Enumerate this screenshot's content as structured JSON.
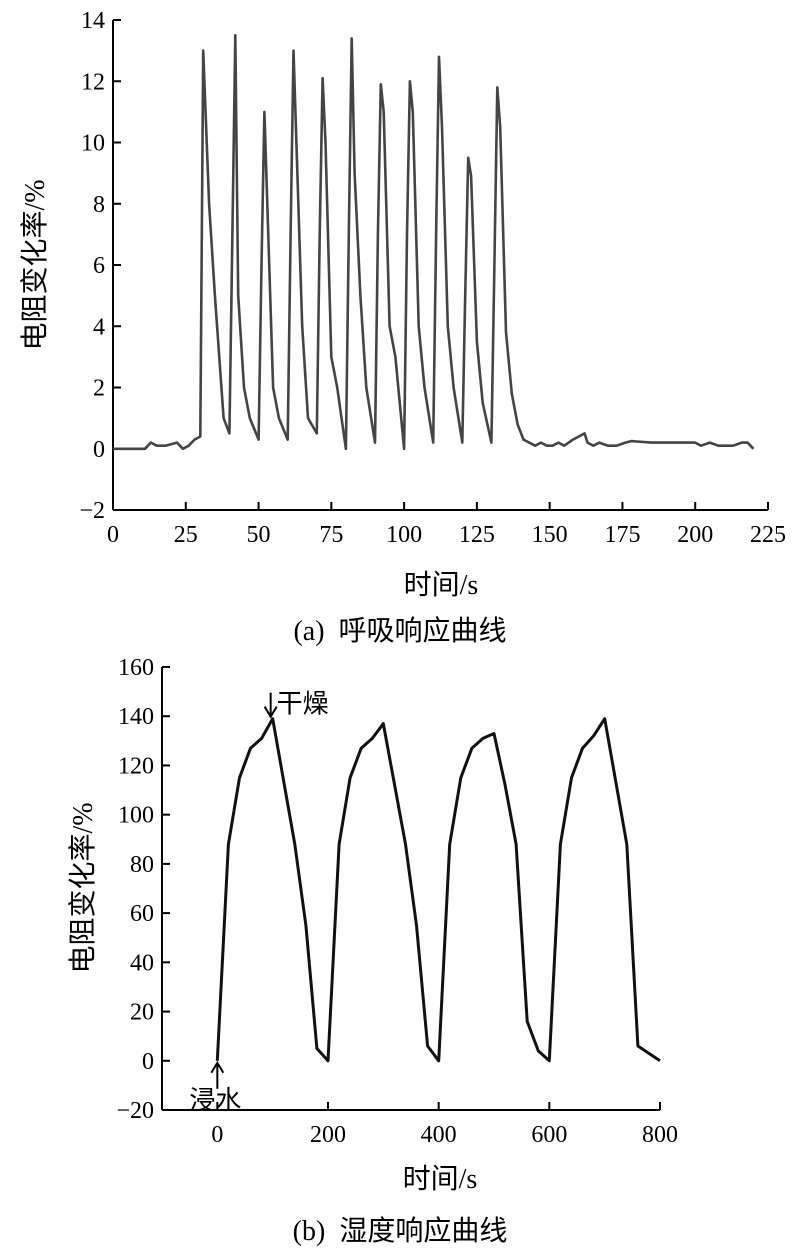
{
  "chart_data": [
    {
      "type": "line",
      "caption": "(a)  呼吸响应曲线",
      "xlabel": "时间/s",
      "ylabel": "电阻变化率/%",
      "xlim": [
        0,
        225
      ],
      "ylim": [
        -2,
        14
      ],
      "xticks": [
        0,
        25,
        50,
        75,
        100,
        125,
        150,
        175,
        200,
        225
      ],
      "yticks": [
        -2,
        0,
        2,
        4,
        6,
        8,
        10,
        12,
        14
      ],
      "ytick_labels": [
        "−2",
        "0",
        "2",
        "4",
        "6",
        "8",
        "10",
        "12",
        "14"
      ],
      "color": "#444444",
      "series": [
        {
          "x": [
            0,
            4,
            8,
            11,
            13,
            15,
            18,
            22,
            24,
            26,
            28,
            30,
            31,
            33,
            35,
            38,
            40,
            41,
            42,
            43,
            45,
            47,
            50,
            51,
            52,
            53,
            55,
            57,
            60,
            61,
            62,
            63,
            65,
            67,
            70,
            71,
            72,
            73,
            75,
            77,
            80,
            81,
            82,
            83,
            85,
            87,
            90,
            91,
            92,
            93,
            95,
            97,
            100,
            101,
            102,
            103,
            105,
            107,
            110,
            111,
            112,
            113,
            115,
            117,
            120,
            121,
            122,
            123,
            125,
            127,
            130,
            131,
            132,
            133,
            135,
            137,
            139,
            141,
            143,
            145,
            147,
            149,
            151,
            153,
            155,
            158,
            160,
            162,
            163,
            165,
            167,
            170,
            173,
            176,
            178,
            185,
            195,
            200,
            202,
            205,
            208,
            210,
            213,
            216,
            218,
            220
          ],
          "y": [
            0.0,
            0.0,
            0.0,
            0.0,
            0.2,
            0.1,
            0.1,
            0.2,
            0.0,
            0.1,
            0.3,
            0.4,
            13.0,
            8.0,
            5.0,
            1.0,
            0.5,
            7.0,
            13.5,
            5.0,
            2.0,
            1.0,
            0.3,
            6.0,
            11.0,
            8.0,
            2.0,
            1.0,
            0.3,
            7.0,
            13.0,
            10.0,
            4.0,
            1.0,
            0.5,
            7.0,
            12.1,
            10.0,
            3.0,
            2.0,
            0.0,
            7.0,
            13.4,
            9.0,
            5.0,
            2.0,
            0.2,
            7.0,
            11.9,
            11.0,
            4.0,
            3.0,
            0.0,
            7.0,
            12.0,
            11.0,
            4.0,
            2.0,
            0.2,
            7.0,
            12.8,
            10.5,
            4.0,
            2.0,
            0.2,
            5.0,
            9.5,
            8.9,
            3.5,
            1.5,
            0.2,
            6.0,
            11.8,
            10.5,
            3.8,
            1.8,
            0.8,
            0.3,
            0.2,
            0.1,
            0.2,
            0.1,
            0.1,
            0.2,
            0.1,
            0.3,
            0.4,
            0.5,
            0.2,
            0.1,
            0.2,
            0.1,
            0.1,
            0.2,
            0.25,
            0.2,
            0.2,
            0.2,
            0.1,
            0.2,
            0.1,
            0.1,
            0.1,
            0.2,
            0.2,
            0.0
          ]
        }
      ]
    },
    {
      "type": "line",
      "caption": "(b)  湿度响应曲线",
      "xlabel": "时间/s",
      "ylabel": "电阻变化率/%",
      "xlim": [
        -100,
        800
      ],
      "ylim": [
        -20,
        160
      ],
      "xticks": [
        0,
        200,
        400,
        600,
        800
      ],
      "yticks": [
        -20,
        0,
        20,
        40,
        60,
        80,
        100,
        120,
        140,
        160
      ],
      "ytick_labels": [
        "−20",
        "0",
        "20",
        "40",
        "60",
        "80",
        "100",
        "120",
        "140",
        "160"
      ],
      "color": "#111111",
      "series": [
        {
          "x": [
            0,
            20,
            40,
            60,
            80,
            100,
            140,
            160,
            180,
            200,
            220,
            240,
            260,
            280,
            300,
            340,
            360,
            380,
            400,
            420,
            440,
            460,
            480,
            500,
            520,
            540,
            560,
            580,
            600,
            620,
            640,
            660,
            680,
            700,
            740,
            760,
            780,
            800
          ],
          "y": [
            0,
            88,
            115,
            127,
            131,
            139,
            88,
            55,
            5,
            0,
            88,
            115,
            127,
            131,
            137,
            88,
            55,
            6,
            0,
            88,
            115,
            127,
            131,
            133,
            112,
            88,
            16,
            4,
            0,
            88,
            115,
            127,
            132,
            139,
            88,
            6,
            3,
            0
          ]
        }
      ],
      "annotations": [
        {
          "text": "干燥",
          "x": 100,
          "y": 139
        },
        {
          "text": "浸水",
          "x": 0,
          "y": 0
        }
      ]
    }
  ]
}
